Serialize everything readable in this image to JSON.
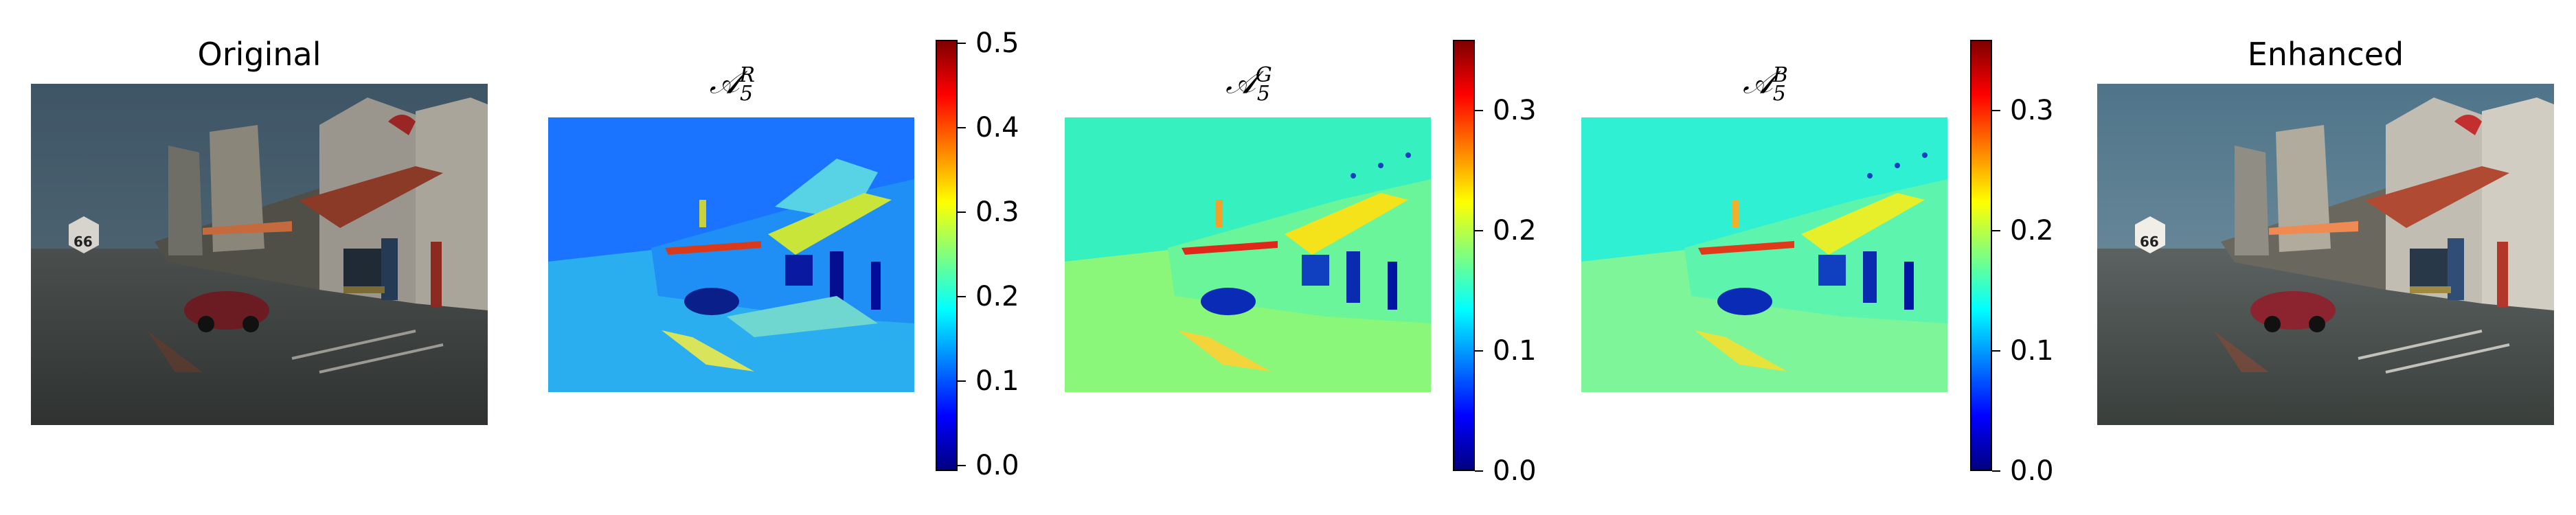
{
  "panels": {
    "original": {
      "title": "Original"
    },
    "map_r": {
      "title_main": "𝒜",
      "title_sup": "R",
      "title_sub": "5"
    },
    "map_g": {
      "title_main": "𝒜",
      "title_sup": "G",
      "title_sub": "5"
    },
    "map_b": {
      "title_main": "𝒜",
      "title_sup": "B",
      "title_sub": "5"
    },
    "enhanced": {
      "title": "Enhanced"
    }
  },
  "colorbars": {
    "r": {
      "ticks": [
        "0.5",
        "0.4",
        "0.3",
        "0.2",
        "0.1",
        "0.0"
      ]
    },
    "g": {
      "ticks": [
        "0.3",
        "0.2",
        "0.1",
        "0.0"
      ]
    },
    "b": {
      "ticks": [
        "0.3",
        "0.2",
        "0.1",
        "0.0"
      ]
    }
  },
  "colormap": "jet"
}
